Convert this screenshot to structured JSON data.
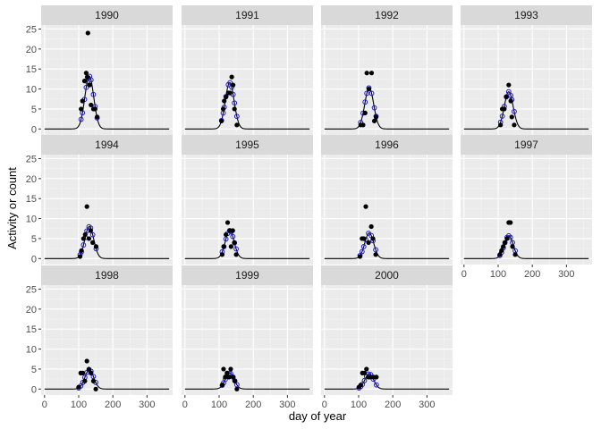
{
  "chart_data": {
    "type": "scatter",
    "facet_by": "year",
    "xlabel": "day of year",
    "ylabel": "Activity or count",
    "xlim": [
      -10,
      375
    ],
    "ylim": [
      -1.5,
      26
    ],
    "x_ticks": [
      0,
      100,
      200,
      300
    ],
    "y_ticks": [
      0,
      5,
      10,
      15,
      20,
      25
    ],
    "grid": true,
    "colors": {
      "panel_bg": "#ebebeb",
      "strip_bg": "#d9d9d9",
      "grid_major": "#ffffff",
      "grid_minor": "#f5f5f5",
      "points": "#000000",
      "fitted_curve": "#000000",
      "fitted_points": "#1c1cc8"
    },
    "panels": [
      {
        "year": "1990",
        "peak": 13.2,
        "center": 131,
        "width": 13,
        "observed": [
          [
            107,
            5
          ],
          [
            111,
            7
          ],
          [
            117,
            12
          ],
          [
            122,
            14
          ],
          [
            125,
            13
          ],
          [
            127,
            24
          ],
          [
            132,
            11
          ],
          [
            136,
            6
          ],
          [
            143,
            5
          ],
          [
            148,
            5
          ],
          [
            154,
            3
          ]
        ]
      },
      {
        "year": "1991",
        "peak": 11.6,
        "center": 131,
        "width": 13,
        "observed": [
          [
            107,
            2
          ],
          [
            112,
            5
          ],
          [
            115,
            7
          ],
          [
            120,
            8
          ],
          [
            127,
            9
          ],
          [
            132,
            9
          ],
          [
            137,
            13
          ],
          [
            141,
            11
          ],
          [
            145,
            5
          ],
          [
            152,
            1
          ]
        ]
      },
      {
        "year": "1992",
        "peak": 10.3,
        "center": 131,
        "width": 13,
        "observed": [
          [
            106,
            1
          ],
          [
            113,
            1
          ],
          [
            119,
            4
          ],
          [
            124,
            14
          ],
          [
            130,
            10
          ],
          [
            138,
            14
          ],
          [
            146,
            2
          ],
          [
            151,
            3
          ]
        ]
      },
      {
        "year": "1993",
        "peak": 9.3,
        "center": 131,
        "width": 13,
        "observed": [
          [
            107,
            1
          ],
          [
            112,
            5
          ],
          [
            118,
            5
          ],
          [
            124,
            8
          ],
          [
            131,
            11
          ],
          [
            137,
            7
          ],
          [
            140,
            3
          ],
          [
            147,
            1
          ]
        ]
      },
      {
        "year": "1994",
        "peak": 8.0,
        "center": 131,
        "width": 13,
        "observed": [
          [
            104,
            0.5
          ],
          [
            108,
            2
          ],
          [
            114,
            5
          ],
          [
            119,
            6
          ],
          [
            124,
            13
          ],
          [
            130,
            5
          ],
          [
            135,
            7
          ],
          [
            141,
            4
          ],
          [
            151,
            3
          ]
        ]
      },
      {
        "year": "1995",
        "peak": 7.0,
        "center": 131,
        "width": 13,
        "observed": [
          [
            109,
            1
          ],
          [
            114,
            3
          ],
          [
            120,
            6
          ],
          [
            125,
            9
          ],
          [
            131,
            7
          ],
          [
            135,
            3
          ],
          [
            140,
            7
          ],
          [
            145,
            4
          ],
          [
            150,
            1
          ]
        ]
      },
      {
        "year": "1996",
        "peak": 6.4,
        "center": 131,
        "width": 13,
        "observed": [
          [
            104,
            0.5
          ],
          [
            110,
            5
          ],
          [
            115,
            5
          ],
          [
            121,
            13
          ],
          [
            129,
            4
          ],
          [
            137,
            8
          ],
          [
            142,
            5
          ],
          [
            150,
            1
          ]
        ]
      },
      {
        "year": "1997",
        "peak": 5.7,
        "center": 131,
        "width": 13,
        "observed": [
          [
            105,
            1
          ],
          [
            110,
            2
          ],
          [
            115,
            3
          ],
          [
            120,
            4
          ],
          [
            126,
            5
          ],
          [
            131,
            9
          ],
          [
            136,
            9
          ],
          [
            142,
            3
          ],
          [
            150,
            1
          ]
        ]
      },
      {
        "year": "1998",
        "peak": 4.8,
        "center": 131,
        "width": 13,
        "observed": [
          [
            100,
            0.5
          ],
          [
            106,
            4
          ],
          [
            112,
            4
          ],
          [
            118,
            2
          ],
          [
            124,
            7
          ],
          [
            130,
            5
          ],
          [
            136,
            4
          ],
          [
            143,
            2
          ],
          [
            150,
            0
          ]
        ]
      },
      {
        "year": "1999",
        "peak": 4.0,
        "center": 131,
        "width": 13,
        "observed": [
          [
            109,
            1
          ],
          [
            113,
            5
          ],
          [
            118,
            3
          ],
          [
            123,
            4
          ],
          [
            129,
            3
          ],
          [
            134,
            5
          ],
          [
            141,
            3
          ],
          [
            146,
            2
          ],
          [
            152,
            0
          ]
        ]
      },
      {
        "year": "2000",
        "peak": 3.8,
        "center": 131,
        "width": 13,
        "observed": [
          [
            101,
            0.5
          ],
          [
            106,
            1
          ],
          [
            111,
            4
          ],
          [
            117,
            4
          ],
          [
            123,
            5
          ],
          [
            129,
            3
          ],
          [
            135,
            3
          ],
          [
            143,
            3
          ],
          [
            152,
            3
          ]
        ]
      }
    ]
  }
}
